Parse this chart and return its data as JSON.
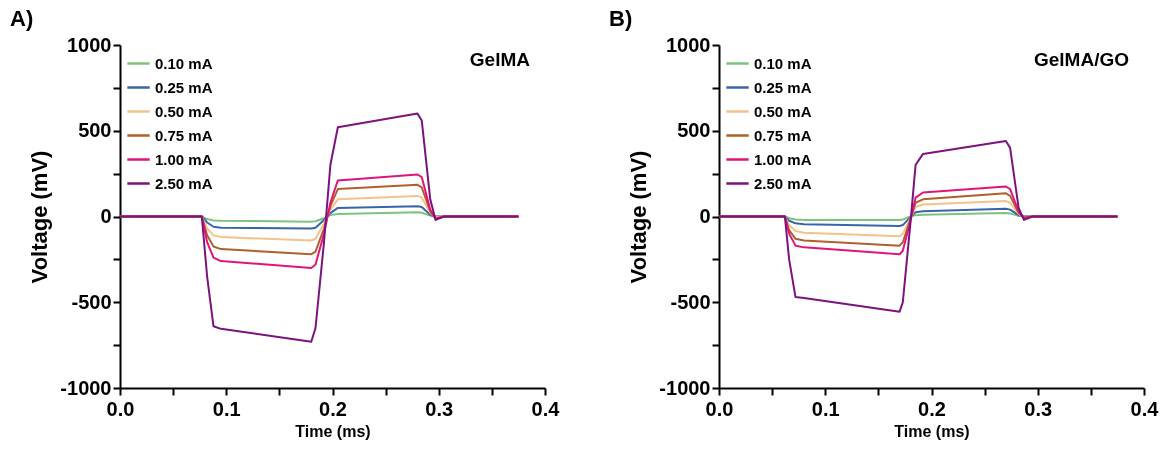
{
  "chart_data": [
    {
      "type": "line",
      "title": "A)",
      "annotations": [
        "GelMA"
      ],
      "xlabel": "Time (ms)",
      "ylabel": "Voltage (mV)",
      "legend": "top left",
      "x": [
        0,
        0.077,
        0.082,
        0.088,
        0.095,
        0.18,
        0.184,
        0.192,
        0.198,
        0.205,
        0.28,
        0.284,
        0.292,
        0.297,
        0.305,
        0.375
      ],
      "xlim": [
        0,
        0.4
      ],
      "ylim": [
        -1000,
        1000
      ],
      "xticks": [
        {
          "value": 0,
          "label": "0.0"
        },
        {
          "value": 0.05,
          "label": null
        },
        {
          "value": 0.1,
          "label": "0.1"
        },
        {
          "value": 0.15,
          "label": null
        },
        {
          "value": 0.2,
          "label": "0.2"
        },
        {
          "value": 0.25,
          "label": null
        },
        {
          "value": 0.3,
          "label": "0.3"
        },
        {
          "value": 0.35,
          "label": null
        },
        {
          "value": 0.4,
          "label": "0.4"
        }
      ],
      "yticks": [
        -1000,
        {
          "value": -750,
          "label": null
        },
        -500,
        {
          "value": -250,
          "label": null
        },
        0,
        {
          "value": 250,
          "label": null
        },
        500,
        {
          "value": 750,
          "label": null
        },
        1000
      ],
      "series": [
        {
          "name": "0.10 mA",
          "color": "#7cc47e",
          "values": [
            0,
            0,
            -15,
            -23,
            -25,
            -30,
            -28,
            -10,
            8,
            15,
            25,
            22,
            5,
            0,
            0,
            0
          ]
        },
        {
          "name": "0.25 mA",
          "color": "#3a64a8",
          "values": [
            0,
            0,
            -35,
            -60,
            -65,
            -70,
            -65,
            -20,
            20,
            50,
            60,
            55,
            10,
            0,
            0,
            0
          ]
        },
        {
          "name": "0.50 mA",
          "color": "#f5c28b",
          "values": [
            0,
            0,
            -70,
            -110,
            -120,
            -140,
            -130,
            -40,
            40,
            100,
            120,
            110,
            20,
            -5,
            0,
            0
          ]
        },
        {
          "name": "0.75 mA",
          "color": "#b0602a",
          "values": [
            0,
            0,
            -110,
            -175,
            -190,
            -220,
            -205,
            -70,
            60,
            160,
            185,
            170,
            30,
            -10,
            0,
            0
          ]
        },
        {
          "name": "1.00 mA",
          "color": "#e0157a",
          "values": [
            0,
            0,
            -150,
            -240,
            -260,
            -300,
            -280,
            -100,
            80,
            210,
            245,
            230,
            40,
            -15,
            0,
            0
          ]
        },
        {
          "name": "2.50 mA",
          "color": "#7b137f",
          "values": [
            0,
            0,
            -350,
            -640,
            -655,
            -730,
            -650,
            -150,
            300,
            520,
            600,
            560,
            100,
            -20,
            0,
            0
          ]
        }
      ]
    },
    {
      "type": "line",
      "title": "B)",
      "annotations": [
        "GelMA/GO"
      ],
      "xlabel": "Time (ms)",
      "ylabel": "Voltage (mV)",
      "legend": "top left",
      "x": [
        0,
        0.062,
        0.066,
        0.072,
        0.08,
        0.17,
        0.173,
        0.18,
        0.185,
        0.192,
        0.27,
        0.274,
        0.282,
        0.287,
        0.295,
        0.375
      ],
      "xlim": [
        0,
        0.4
      ],
      "ylim": [
        -1000,
        1000
      ],
      "xticks": [
        {
          "value": 0,
          "label": "0.0"
        },
        {
          "value": 0.05,
          "label": null
        },
        {
          "value": 0.1,
          "label": "0.1"
        },
        {
          "value": 0.15,
          "label": null
        },
        {
          "value": 0.2,
          "label": "0.2"
        },
        {
          "value": 0.25,
          "label": null
        },
        {
          "value": 0.3,
          "label": "0.3"
        },
        {
          "value": 0.35,
          "label": null
        },
        {
          "value": 0.4,
          "label": "0.4"
        }
      ],
      "yticks": [
        -1000,
        {
          "value": -750,
          "label": null
        },
        -500,
        {
          "value": -250,
          "label": null
        },
        0,
        {
          "value": 250,
          "label": null
        },
        500,
        {
          "value": 750,
          "label": null
        },
        1000
      ],
      "series": [
        {
          "name": "0.10 mA",
          "color": "#7cc47e",
          "values": [
            0,
            0,
            -10,
            -18,
            -20,
            -20,
            -18,
            0,
            8,
            10,
            20,
            18,
            3,
            0,
            0,
            0
          ]
        },
        {
          "name": "0.25 mA",
          "color": "#3a64a8",
          "values": [
            0,
            0,
            -25,
            -40,
            -45,
            -55,
            -50,
            -5,
            25,
            30,
            45,
            40,
            8,
            0,
            0,
            0
          ]
        },
        {
          "name": "0.50 mA",
          "color": "#f5c28b",
          "values": [
            0,
            0,
            -50,
            -85,
            -95,
            -115,
            -100,
            -15,
            55,
            70,
            90,
            80,
            15,
            -5,
            0,
            0
          ]
        },
        {
          "name": "0.75 mA",
          "color": "#b0602a",
          "values": [
            0,
            0,
            -80,
            -130,
            -140,
            -170,
            -150,
            -20,
            80,
            100,
            135,
            120,
            20,
            -5,
            0,
            0
          ]
        },
        {
          "name": "1.00 mA",
          "color": "#e0157a",
          "values": [
            0,
            0,
            -100,
            -170,
            -180,
            -220,
            -200,
            -30,
            110,
            140,
            175,
            160,
            30,
            -10,
            0,
            0
          ]
        },
        {
          "name": "2.50 mA",
          "color": "#7b137f",
          "values": [
            0,
            0,
            -250,
            -470,
            -475,
            -555,
            -500,
            -50,
            300,
            365,
            440,
            400,
            50,
            -20,
            0,
            0
          ]
        }
      ]
    }
  ]
}
